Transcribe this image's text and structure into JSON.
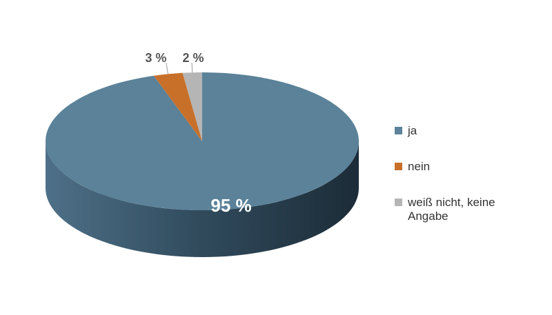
{
  "chart_data": {
    "type": "pie3d",
    "categories": [
      "ja",
      "nein",
      "weiß nicht, keine Angabe"
    ],
    "values": [
      95,
      3,
      2
    ],
    "value_labels": [
      "95 %",
      "3 %",
      "2 %"
    ],
    "colors": [
      "#5b8299",
      "#c8702a",
      "#b5b5b5"
    ],
    "legend": "right"
  }
}
